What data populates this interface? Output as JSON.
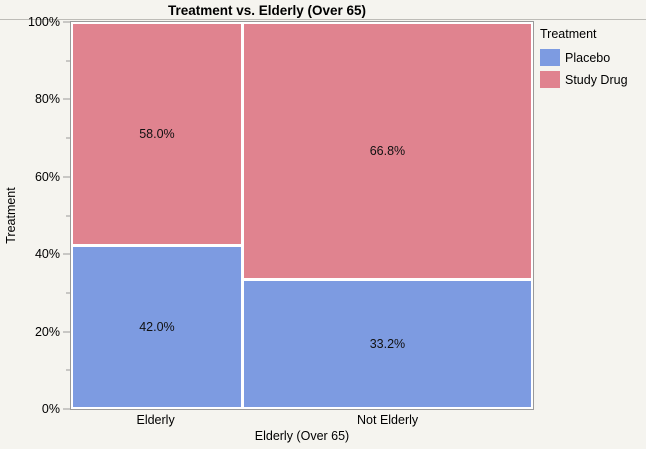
{
  "title": "Treatment vs. Elderly (Over 65)",
  "background_color": "#F5F4EF",
  "axis_color": "#9A9A9A",
  "y_axis": {
    "label": "Treatment",
    "ticks": [
      {
        "label": "0%",
        "value": 0
      },
      {
        "label": "20%",
        "value": 20
      },
      {
        "label": "40%",
        "value": 40
      },
      {
        "label": "60%",
        "value": 60
      },
      {
        "label": "80%",
        "value": 80
      },
      {
        "label": "100%",
        "value": 100
      }
    ],
    "minor_ticks": [
      10,
      30,
      50,
      70,
      90
    ]
  },
  "x_axis": {
    "label": "Elderly (Over 65)"
  },
  "legend": {
    "title": "Treatment",
    "items": [
      {
        "label": "Placebo",
        "color": "#7D9BE1"
      },
      {
        "label": "Study Drug",
        "color": "#E0838F"
      }
    ]
  },
  "chart_data": {
    "type": "mosaic",
    "title": "Treatment vs. Elderly (Over 65)",
    "xlabel": "Elderly (Over 65)",
    "ylabel": "Treatment",
    "categories": [
      "Elderly",
      "Not Elderly"
    ],
    "category_widths_pct": [
      36.9,
      63.1
    ],
    "series": [
      {
        "name": "Placebo",
        "color": "#7D9BE1",
        "values": [
          42.0,
          33.2
        ],
        "labels": [
          "42.0%",
          "33.2%"
        ]
      },
      {
        "name": "Study Drug",
        "color": "#E0838F",
        "values": [
          58.0,
          66.8
        ],
        "labels": [
          "58.0%",
          "66.8%"
        ]
      }
    ],
    "stack_order_bottom_to_top": [
      "Placebo",
      "Study Drug"
    ],
    "ylim": [
      0,
      100
    ],
    "y_unit": "%",
    "grid": false,
    "legend_position": "right"
  }
}
